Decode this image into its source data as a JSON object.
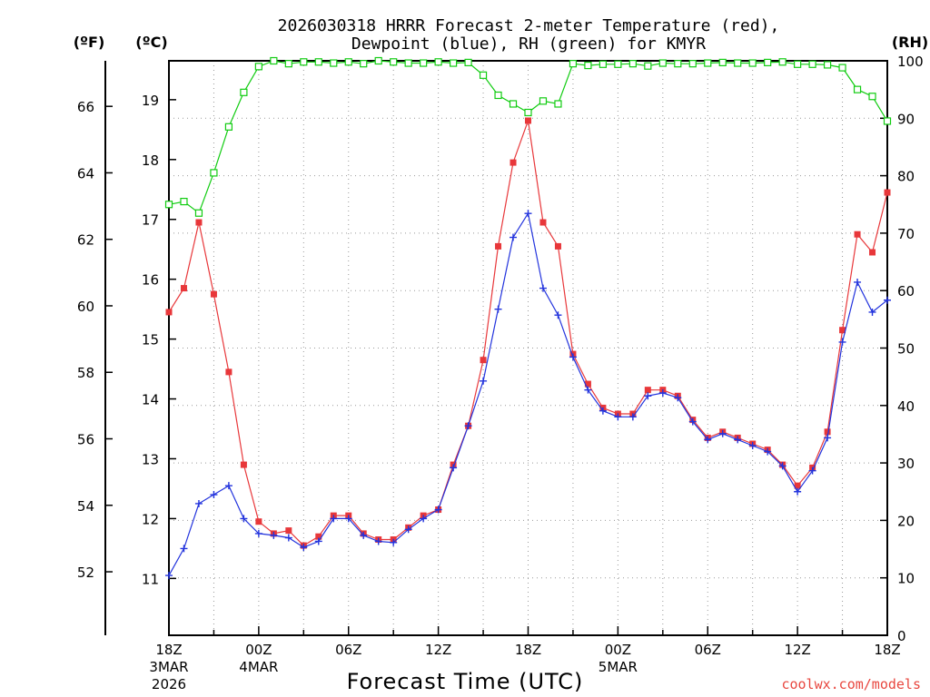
{
  "title_line1": "2026030318 HRRR Forecast 2-meter Temperature (red),",
  "title_line2": "Dewpoint (blue), RH (green) for KMYR",
  "credit": "coolwx.com/models",
  "colors": {
    "temp": "#e8373a",
    "dewpoint": "#2233dd",
    "rh": "#11cc11",
    "grid": "#999999"
  },
  "chart_data": {
    "type": "line",
    "title": "2026030318 HRRR Forecast 2-meter Temperature (red), Dewpoint (blue), RH (green) for KMYR",
    "xlabel": "Forecast Time (UTC)",
    "x_hours": [
      0,
      1,
      2,
      3,
      4,
      5,
      6,
      7,
      8,
      9,
      10,
      11,
      12,
      13,
      14,
      15,
      16,
      17,
      18,
      19,
      20,
      21,
      22,
      23,
      24,
      25,
      26,
      27,
      28,
      29,
      30,
      31,
      32,
      33,
      34,
      35,
      36,
      37,
      38,
      39,
      40,
      41,
      42,
      43,
      44,
      45,
      46,
      47,
      48
    ],
    "xlim": [
      0,
      48
    ],
    "x_ticks": [
      {
        "h": 0,
        "label": "18Z",
        "sub1": "3MAR",
        "sub2": "2026"
      },
      {
        "h": 6,
        "label": "00Z",
        "sub1": "4MAR",
        "sub2": ""
      },
      {
        "h": 12,
        "label": "06Z",
        "sub1": "",
        "sub2": ""
      },
      {
        "h": 18,
        "label": "12Z",
        "sub1": "",
        "sub2": ""
      },
      {
        "h": 24,
        "label": "18Z",
        "sub1": "",
        "sub2": ""
      },
      {
        "h": 30,
        "label": "00Z",
        "sub1": "5MAR",
        "sub2": ""
      },
      {
        "h": 36,
        "label": "06Z",
        "sub1": "",
        "sub2": ""
      },
      {
        "h": 42,
        "label": "12Z",
        "sub1": "",
        "sub2": ""
      },
      {
        "h": 48,
        "label": "18Z",
        "sub1": "",
        "sub2": ""
      }
    ],
    "y_left_c": {
      "unit": "(ºC)",
      "range": [
        10.05,
        19.65
      ],
      "ticks": [
        11,
        12,
        13,
        14,
        15,
        16,
        17,
        18,
        19
      ]
    },
    "y_left_f": {
      "unit": "(ºF)",
      "ticks": [
        52,
        54,
        56,
        58,
        60,
        62,
        64,
        66
      ]
    },
    "y_right_rh": {
      "unit": "(RH)",
      "range": [
        0,
        100
      ],
      "ticks": [
        0,
        10,
        20,
        30,
        40,
        50,
        60,
        70,
        80,
        90,
        100
      ]
    },
    "series": [
      {
        "name": "Temperature",
        "unit": "C",
        "marker": "square",
        "values": [
          15.45,
          15.85,
          16.95,
          15.75,
          14.45,
          12.9,
          11.95,
          11.75,
          11.8,
          11.55,
          11.7,
          12.05,
          12.05,
          11.75,
          11.65,
          11.65,
          11.85,
          12.05,
          12.15,
          12.9,
          13.55,
          14.65,
          16.55,
          17.95,
          18.65,
          16.95,
          16.55,
          14.75,
          14.25,
          13.85,
          13.75,
          13.75,
          14.15,
          14.15,
          14.05,
          13.65,
          13.35,
          13.45,
          13.35,
          13.25,
          13.15,
          12.9,
          12.55,
          12.85,
          13.45,
          15.15,
          16.75,
          16.45,
          17.45
        ]
      },
      {
        "name": "Dewpoint",
        "unit": "C",
        "marker": "plus",
        "values": [
          11.05,
          11.5,
          12.25,
          12.4,
          12.55,
          12.0,
          11.75,
          11.72,
          11.68,
          11.52,
          11.62,
          12.0,
          12.0,
          11.72,
          11.62,
          11.6,
          11.82,
          12.0,
          12.15,
          12.85,
          13.55,
          14.3,
          15.5,
          16.7,
          17.1,
          15.85,
          15.4,
          14.7,
          14.15,
          13.8,
          13.7,
          13.7,
          14.05,
          14.1,
          14.02,
          13.62,
          13.32,
          13.42,
          13.32,
          13.22,
          13.12,
          12.88,
          12.45,
          12.8,
          13.35,
          14.95,
          15.95,
          15.45,
          15.65
        ]
      },
      {
        "name": "RH",
        "unit": "%",
        "marker": "open-square",
        "values": [
          75.0,
          75.5,
          73.5,
          80.5,
          88.5,
          94.5,
          99.0,
          100,
          99.5,
          99.8,
          99.8,
          99.6,
          99.8,
          99.5,
          100,
          99.8,
          99.6,
          99.6,
          99.8,
          99.6,
          99.7,
          97.5,
          94.0,
          92.5,
          91.0,
          93.0,
          92.5,
          99.5,
          99.2,
          99.4,
          99.4,
          99.5,
          99.1,
          99.6,
          99.5,
          99.5,
          99.6,
          99.7,
          99.6,
          99.6,
          99.7,
          99.8,
          99.4,
          99.4,
          99.3,
          98.8,
          95.0,
          93.8,
          89.5
        ]
      }
    ]
  }
}
